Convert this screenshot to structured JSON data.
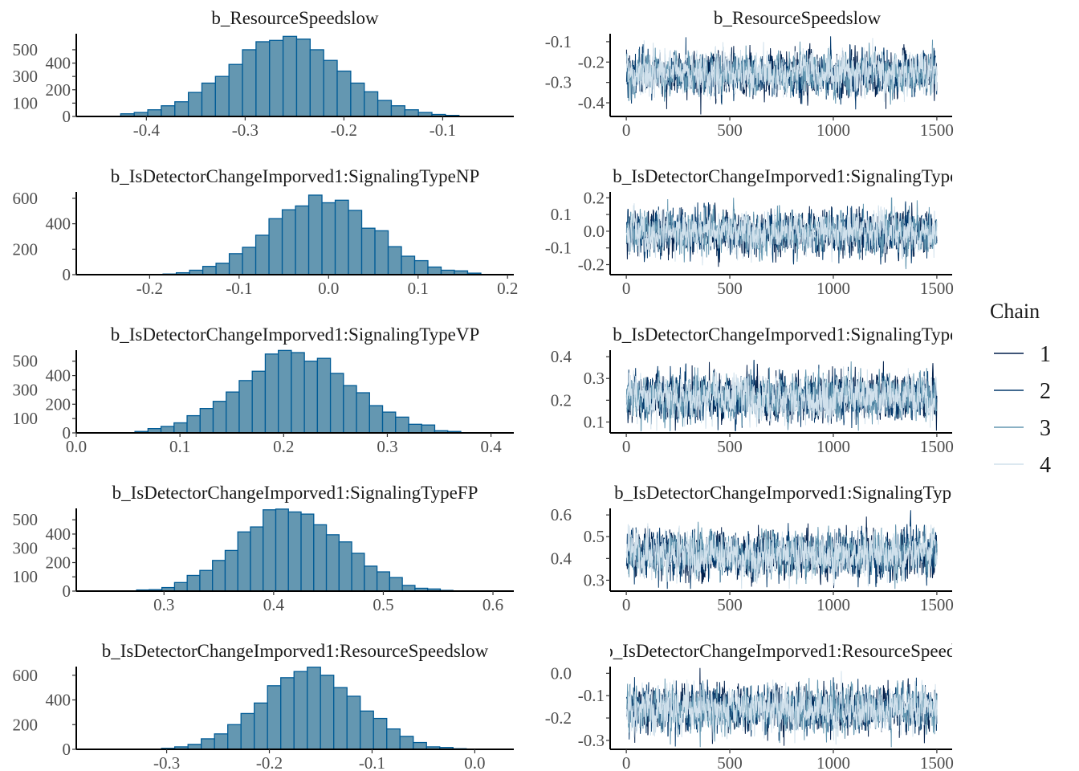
{
  "chart_data": {
    "type": "histogram+trace",
    "colors": {
      "hist_fill": "#6497b1",
      "hist_outline": "#005b96",
      "axis": "#000000",
      "chains": [
        "#011f4b",
        "#03396c",
        "#6497b1",
        "#d1e1ec"
      ]
    },
    "legend": {
      "title": "Chain",
      "placement": "right",
      "labels": [
        "1",
        "2",
        "3",
        "4"
      ]
    },
    "panels": [
      {
        "parameter": "b_ResourceSpeedslow",
        "hist": {
          "bin_start": -0.426,
          "bin_width": 0.0137,
          "counts": [
            20,
            30,
            50,
            80,
            110,
            180,
            250,
            300,
            390,
            500,
            560,
            570,
            600,
            580,
            500,
            420,
            340,
            250,
            185,
            120,
            80,
            50,
            30,
            15,
            8
          ],
          "xlim": [
            -0.471,
            -0.028
          ],
          "ylim": [
            0,
            620
          ],
          "xticks": [
            "-0.4",
            "-0.3",
            "-0.2",
            "-0.1"
          ],
          "xtick_values": [
            -0.4,
            -0.3,
            -0.2,
            -0.1
          ],
          "yticks": [
            "0",
            "100",
            "200",
            "300",
            "400",
            "500"
          ],
          "ytick_values": [
            0,
            100,
            200,
            300,
            400,
            500
          ]
        },
        "trace": {
          "iterations": 1500,
          "mean": -0.255,
          "sd": 0.05,
          "xlim": [
            -78,
            1574
          ],
          "ylim": [
            -0.467,
            -0.061
          ],
          "xticks": [
            "0",
            "500",
            "1000",
            "1500"
          ],
          "xtick_values": [
            0,
            500,
            1000,
            1500
          ],
          "yticks": [
            "-0.4",
            "-0.3",
            "-0.2",
            "-0.1"
          ],
          "ytick_values": [
            -0.4,
            -0.3,
            -0.2,
            -0.1
          ]
        }
      },
      {
        "parameter": "b_IsDetectorChangeImporved1:SignalingTypeNP",
        "hist": {
          "bin_start": -0.185,
          "bin_width": 0.0148,
          "counts": [
            5,
            15,
            35,
            65,
            90,
            165,
            215,
            310,
            440,
            510,
            540,
            625,
            565,
            585,
            505,
            365,
            345,
            220,
            145,
            110,
            60,
            35,
            30,
            12
          ],
          "xlim": [
            -0.282,
            0.207
          ],
          "ylim": [
            0,
            650
          ],
          "xticks": [
            "-0.2",
            "-0.1",
            "0.0",
            "0.1",
            "0.2"
          ],
          "xtick_values": [
            -0.2,
            -0.1,
            0,
            0.1,
            0.2
          ],
          "yticks": [
            "0",
            "200",
            "400",
            "600"
          ],
          "ytick_values": [
            0,
            200,
            400,
            600
          ]
        },
        "trace": {
          "iterations": 1500,
          "mean": -0.005,
          "sd": 0.06,
          "xlim": [
            -78,
            1574
          ],
          "ylim": [
            -0.26,
            0.235
          ],
          "xticks": [
            "0",
            "500",
            "1000",
            "1500"
          ],
          "xtick_values": [
            0,
            500,
            1000,
            1500
          ],
          "yticks": [
            "-0.2",
            "-0.1",
            "0.0",
            "0.1",
            "0.2"
          ],
          "ytick_values": [
            -0.2,
            -0.1,
            0,
            0.1,
            0.2
          ]
        }
      },
      {
        "parameter": "b_IsDetectorChangeImporved1:SignalingTypeVP",
        "hist": {
          "bin_start": 0.0566,
          "bin_width": 0.01257,
          "counts": [
            10,
            30,
            45,
            70,
            120,
            170,
            220,
            285,
            365,
            430,
            550,
            575,
            560,
            500,
            520,
            415,
            330,
            280,
            190,
            145,
            110,
            60,
            55,
            15,
            10
          ],
          "xlim": [
            0.0,
            0.422
          ],
          "ylim": [
            0,
            577
          ],
          "xticks": [
            "0.0",
            "0.1",
            "0.2",
            "0.3",
            "0.4"
          ],
          "xtick_values": [
            0,
            0.1,
            0.2,
            0.3,
            0.4
          ],
          "yticks": [
            "0",
            "100",
            "200",
            "300",
            "400",
            "500"
          ],
          "ytick_values": [
            0,
            100,
            200,
            300,
            400,
            500
          ]
        },
        "trace": {
          "iterations": 1500,
          "mean": 0.215,
          "sd": 0.05,
          "xlim": [
            -78,
            1574
          ],
          "ylim": [
            0.05,
            0.43
          ],
          "xticks": [
            "0",
            "500",
            "1000",
            "1500"
          ],
          "xtick_values": [
            0,
            500,
            1000,
            1500
          ],
          "yticks": [
            "0.1",
            "0.2",
            "0.3",
            "0.4"
          ],
          "ytick_values": [
            0.1,
            0.2,
            0.3,
            0.4
          ]
        }
      },
      {
        "parameter": "b_IsDetectorChangeImporved1:SignalingTypeFP",
        "hist": {
          "bin_start": 0.275,
          "bin_width": 0.01154,
          "counts": [
            8,
            10,
            25,
            60,
            110,
            145,
            215,
            285,
            415,
            450,
            570,
            575,
            555,
            540,
            465,
            395,
            345,
            265,
            175,
            135,
            95,
            40,
            20,
            15,
            5
          ],
          "xlim": [
            0.22,
            0.619
          ],
          "ylim": [
            0,
            580
          ],
          "xticks": [
            "0.3",
            "0.4",
            "0.5",
            "0.6"
          ],
          "xtick_values": [
            0.3,
            0.4,
            0.5,
            0.6
          ],
          "yticks": [
            "0",
            "100",
            "200",
            "300",
            "400",
            "500"
          ],
          "ytick_values": [
            0,
            100,
            200,
            300,
            400,
            500
          ]
        },
        "trace": {
          "iterations": 1500,
          "mean": 0.42,
          "sd": 0.05,
          "xlim": [
            -78,
            1574
          ],
          "ylim": [
            0.25,
            0.63
          ],
          "xticks": [
            "0",
            "500",
            "1000",
            "1500"
          ],
          "xtick_values": [
            0,
            500,
            1000,
            1500
          ],
          "yticks": [
            "0.3",
            "0.4",
            "0.5",
            "0.6"
          ],
          "ytick_values": [
            0.3,
            0.4,
            0.5,
            0.6
          ]
        }
      },
      {
        "parameter": "b_IsDetectorChangeImporved1:ResourceSpeedslow",
        "hist": {
          "bin_start": -0.305,
          "bin_width": 0.0129,
          "counts": [
            8,
            20,
            40,
            85,
            125,
            200,
            290,
            375,
            515,
            580,
            630,
            665,
            600,
            500,
            430,
            310,
            250,
            165,
            105,
            55,
            20,
            15,
            5
          ],
          "xlim": [
            -0.388,
            0.038
          ],
          "ylim": [
            0,
            670
          ],
          "xticks": [
            "-0.3",
            "-0.2",
            "-0.1",
            "0.0"
          ],
          "xtick_values": [
            -0.3,
            -0.2,
            -0.1,
            0
          ],
          "yticks": [
            "0",
            "200",
            "400",
            "600"
          ],
          "ytick_values": [
            0,
            200,
            400,
            600
          ]
        },
        "trace": {
          "iterations": 1500,
          "mean": -0.16,
          "sd": 0.05,
          "xlim": [
            -78,
            1574
          ],
          "ylim": [
            -0.34,
            0.03
          ],
          "xticks": [
            "0",
            "500",
            "1000",
            "1500"
          ],
          "xtick_values": [
            0,
            500,
            1000,
            1500
          ],
          "yticks": [
            "-0.3",
            "-0.2",
            "-0.1",
            "0.0"
          ],
          "ytick_values": [
            -0.3,
            -0.2,
            -0.1,
            0
          ]
        }
      }
    ]
  }
}
